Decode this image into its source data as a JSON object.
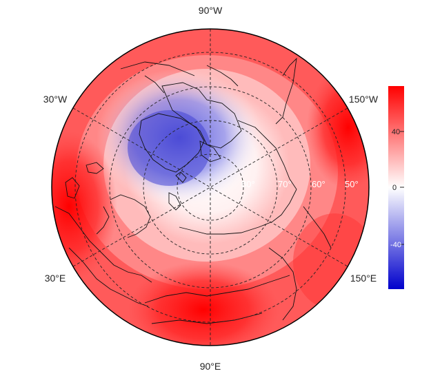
{
  "map": {
    "projection": "north-polar-stereographic",
    "lon_labels": {
      "top": "90°W",
      "upper_left": "30°W",
      "upper_right": "150°W",
      "lower_left": "30°E",
      "lower_right": "150°E",
      "bottom": "90°E"
    },
    "lat_labels": [
      "80°",
      "70°",
      "60°",
      "50°"
    ],
    "field": {
      "high_color": "#ff0000",
      "mid_color": "#ffffff",
      "low_color": "#0000cc",
      "anomaly_region": "negative values over Greenland and the Canadian Arctic Archipelago",
      "positive_maxima": [
        "Eastern Siberia / Central Asia",
        "Western Europe",
        "Alaska"
      ]
    }
  },
  "colorbar": {
    "ticks": [
      "40",
      "0",
      "-40"
    ],
    "range": [
      -60,
      60
    ],
    "colors": {
      "top": "#ff0000",
      "middle": "#ffffff",
      "bottom": "#0000cc"
    }
  }
}
